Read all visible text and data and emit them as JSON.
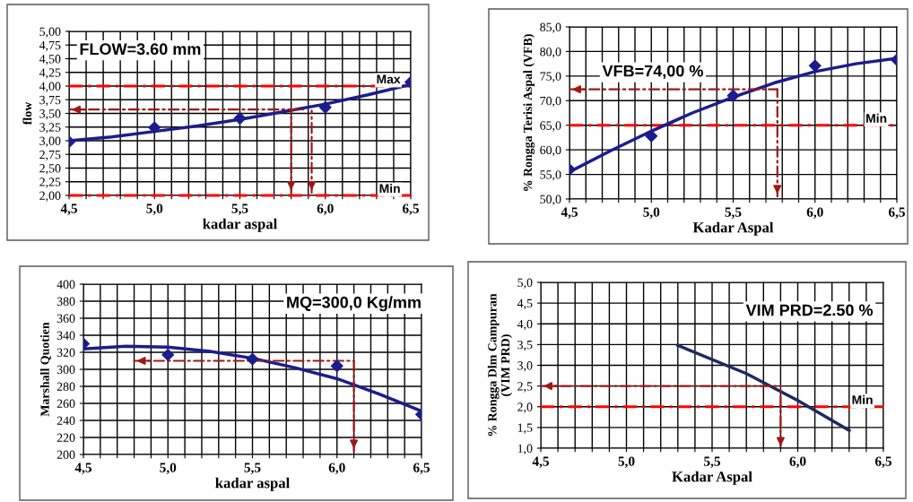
{
  "chart_data": [
    {
      "type": "scatter",
      "xlabel": "kadar aspal",
      "ylabel": "flow",
      "annotations": [
        "FLOW=3.60 mm"
      ],
      "xlim": [
        4.5,
        6.5
      ],
      "xticks": [
        {
          "value": 4.5,
          "label": "4,5"
        },
        {
          "value": 4.6,
          "label": null
        },
        {
          "value": 4.7,
          "label": null
        },
        {
          "value": 4.8,
          "label": null
        },
        {
          "value": 4.9,
          "label": null
        },
        {
          "value": 5.0,
          "label": "5,0"
        },
        {
          "value": 5.1,
          "label": null
        },
        {
          "value": 5.2,
          "label": null
        },
        {
          "value": 5.3,
          "label": null
        },
        {
          "value": 5.4,
          "label": null
        },
        {
          "value": 5.5,
          "label": "5,5"
        },
        {
          "value": 5.6,
          "label": null
        },
        {
          "value": 5.7,
          "label": null
        },
        {
          "value": 5.8,
          "label": null
        },
        {
          "value": 5.9,
          "label": null
        },
        {
          "value": 6.0,
          "label": "6,0"
        },
        {
          "value": 6.1,
          "label": null
        },
        {
          "value": 6.2,
          "label": null
        },
        {
          "value": 6.3,
          "label": null
        },
        {
          "value": 6.4,
          "label": null
        },
        {
          "value": 6.5,
          "label": "6,5"
        }
      ],
      "ylim": [
        2.0,
        5.0
      ],
      "yticks": [
        {
          "value": 2.0,
          "label": "2,00"
        },
        {
          "value": 2.25,
          "label": "2,25"
        },
        {
          "value": 2.5,
          "label": "2,50"
        },
        {
          "value": 2.75,
          "label": "2,75"
        },
        {
          "value": 3.0,
          "label": "3,00"
        },
        {
          "value": 3.25,
          "label": "3,25"
        },
        {
          "value": 3.5,
          "label": "3,50"
        },
        {
          "value": 3.75,
          "label": "3,75"
        },
        {
          "value": 4.0,
          "label": "4,00"
        },
        {
          "value": 4.25,
          "label": "4,25"
        },
        {
          "value": 4.5,
          "label": "4,50"
        },
        {
          "value": 4.75,
          "label": "4,75"
        },
        {
          "value": 5.0,
          "label": "5,00"
        }
      ],
      "grid": true,
      "legend": false,
      "marker": "diamond",
      "ref_lines": [
        {
          "axis": "y",
          "value": 4.0,
          "label": "Max",
          "color": "#ff0000",
          "line_style": "dashed"
        },
        {
          "axis": "y",
          "value": 2.0,
          "label": "Min",
          "color": "#ff0000",
          "line_style": "dashed"
        }
      ],
      "series": [
        {
          "color": "#1c1c8e",
          "x": [
            4.5,
            5.0,
            5.5,
            6.0,
            6.5
          ],
          "values": [
            2.98,
            3.24,
            3.41,
            3.61,
            4.07
          ]
        },
        {
          "type": "line",
          "color": "#1c1c8e",
          "marker": "none",
          "x": [
            4.5,
            4.75,
            5.0,
            5.25,
            5.5,
            5.75,
            6.0,
            6.25,
            6.5
          ],
          "values": [
            3.0,
            3.07,
            3.17,
            3.27,
            3.39,
            3.53,
            3.67,
            3.84,
            4.03
          ]
        },
        {
          "type": "line",
          "color": "#a01818",
          "marker": "none",
          "line_style": "dashed",
          "x": [
            5.87,
            4.5
          ],
          "values": [
            3.57,
            3.57
          ]
        },
        {
          "type": "line",
          "color": "#a01818",
          "marker": "none",
          "line_style": "dashed",
          "x": [
            5.8,
            5.8
          ],
          "values": [
            3.57,
            2.05
          ]
        },
        {
          "type": "line",
          "color": "#a01818",
          "marker": "none",
          "line_style": "dashed",
          "x": [
            5.92,
            5.92
          ],
          "values": [
            3.55,
            2.05
          ]
        }
      ]
    },
    {
      "type": "scatter",
      "xlabel": "Kadar Aspal",
      "ylabel": "% Rongga Terisi Aspal (VFB)",
      "annotations": [
        "VFB=74,00 %"
      ],
      "xlim": [
        4.5,
        6.5
      ],
      "xticks": [
        {
          "value": 4.5,
          "label": "4,5"
        },
        {
          "value": 4.6,
          "label": null
        },
        {
          "value": 4.7,
          "label": null
        },
        {
          "value": 4.8,
          "label": null
        },
        {
          "value": 4.9,
          "label": null
        },
        {
          "value": 5.0,
          "label": "5,0"
        },
        {
          "value": 5.1,
          "label": null
        },
        {
          "value": 5.2,
          "label": null
        },
        {
          "value": 5.3,
          "label": null
        },
        {
          "value": 5.4,
          "label": null
        },
        {
          "value": 5.5,
          "label": "5,5"
        },
        {
          "value": 5.6,
          "label": null
        },
        {
          "value": 5.7,
          "label": null
        },
        {
          "value": 5.8,
          "label": null
        },
        {
          "value": 5.9,
          "label": null
        },
        {
          "value": 6.0,
          "label": "6,0"
        },
        {
          "value": 6.1,
          "label": null
        },
        {
          "value": 6.2,
          "label": null
        },
        {
          "value": 6.3,
          "label": null
        },
        {
          "value": 6.4,
          "label": null
        },
        {
          "value": 6.5,
          "label": "6,5"
        }
      ],
      "ylim": [
        50,
        85
      ],
      "yticks": [
        {
          "value": 50,
          "label": "50,0"
        },
        {
          "value": 55,
          "label": "55,0"
        },
        {
          "value": 60,
          "label": "60,0"
        },
        {
          "value": 65,
          "label": "65,0"
        },
        {
          "value": 70,
          "label": "70,0"
        },
        {
          "value": 75,
          "label": "75,0"
        },
        {
          "value": 80,
          "label": "80,0"
        },
        {
          "value": 85,
          "label": "85,0"
        }
      ],
      "grid": true,
      "legend": false,
      "marker": "diamond",
      "ref_lines": [
        {
          "axis": "y",
          "value": 65,
          "label": "Min",
          "color": "#ff0000",
          "line_style": "dashed"
        }
      ],
      "series": [
        {
          "color": "#1c1c8e",
          "x": [
            4.5,
            5.0,
            5.5,
            6.0,
            6.5
          ],
          "values": [
            56.0,
            62.8,
            71.0,
            77.1,
            78.3
          ]
        },
        {
          "type": "line",
          "color": "#1c1c8e",
          "marker": "none",
          "x": [
            4.5,
            4.75,
            5.0,
            5.25,
            5.5,
            5.75,
            6.0,
            6.25,
            6.5
          ],
          "values": [
            55.5,
            59.8,
            63.8,
            67.5,
            70.7,
            73.6,
            75.9,
            77.5,
            78.6
          ]
        },
        {
          "type": "line",
          "color": "#a01818",
          "marker": "none",
          "line_style": "dashed",
          "x": [
            5.77,
            4.5
          ],
          "values": [
            72.3,
            72.3
          ]
        },
        {
          "type": "line",
          "color": "#a01818",
          "marker": "none",
          "line_style": "dashed",
          "x": [
            5.77,
            5.77
          ],
          "values": [
            72.3,
            50.5
          ]
        }
      ]
    },
    {
      "type": "scatter",
      "xlabel": "kadar aspal",
      "ylabel": "Marshall Quotien",
      "annotations": [
        "MQ=300,0 Kg/mm"
      ],
      "xlim": [
        4.5,
        6.5
      ],
      "xticks": [
        {
          "value": 4.5,
          "label": "4,5"
        },
        {
          "value": 4.6,
          "label": null
        },
        {
          "value": 4.7,
          "label": null
        },
        {
          "value": 4.8,
          "label": null
        },
        {
          "value": 4.9,
          "label": null
        },
        {
          "value": 5.0,
          "label": "5,0"
        },
        {
          "value": 5.1,
          "label": null
        },
        {
          "value": 5.2,
          "label": null
        },
        {
          "value": 5.3,
          "label": null
        },
        {
          "value": 5.4,
          "label": null
        },
        {
          "value": 5.5,
          "label": "5,5"
        },
        {
          "value": 5.6,
          "label": null
        },
        {
          "value": 5.7,
          "label": null
        },
        {
          "value": 5.8,
          "label": null
        },
        {
          "value": 5.9,
          "label": null
        },
        {
          "value": 6.0,
          "label": "6,0"
        },
        {
          "value": 6.1,
          "label": null
        },
        {
          "value": 6.2,
          "label": null
        },
        {
          "value": 6.3,
          "label": null
        },
        {
          "value": 6.4,
          "label": null
        },
        {
          "value": 6.5,
          "label": "6,5"
        }
      ],
      "ylim": [
        200,
        400
      ],
      "yticks": [
        200,
        220,
        240,
        260,
        280,
        300,
        320,
        340,
        360,
        380,
        400
      ],
      "grid": true,
      "legend": false,
      "marker": "diamond",
      "series": [
        {
          "color": "#1c1c8e",
          "x": [
            4.5,
            5.0,
            5.5,
            6.0,
            6.5
          ],
          "values": [
            330,
            317,
            312,
            304,
            247
          ]
        },
        {
          "type": "line",
          "color": "#1c1c8e",
          "marker": "none",
          "x": [
            4.5,
            4.75,
            5.0,
            5.25,
            5.5,
            5.75,
            6.0,
            6.25,
            6.5
          ],
          "values": [
            324,
            327,
            326,
            321,
            313,
            302,
            289,
            271,
            251
          ]
        },
        {
          "type": "line",
          "color": "#a01818",
          "marker": "none",
          "line_style": "dashed",
          "x": [
            6.1,
            4.8
          ],
          "values": [
            310,
            310
          ]
        },
        {
          "type": "line",
          "color": "#a01818",
          "marker": "none",
          "line_style": "dashed",
          "x": [
            6.1,
            6.1
          ],
          "values": [
            310,
            204
          ]
        }
      ]
    },
    {
      "type": "line",
      "xlabel": "Kadar Aspal",
      "ylabel": "% Rongga Dlm Campuran\n(VIM PRD)",
      "annotations": [
        "VIM PRD=2.50 %"
      ],
      "xlim": [
        4.5,
        6.5
      ],
      "xticks": [
        {
          "value": 4.5,
          "label": "4,5"
        },
        {
          "value": 4.6,
          "label": null
        },
        {
          "value": 4.7,
          "label": null
        },
        {
          "value": 4.8,
          "label": null
        },
        {
          "value": 4.9,
          "label": null
        },
        {
          "value": 5.0,
          "label": "5,0"
        },
        {
          "value": 5.1,
          "label": null
        },
        {
          "value": 5.2,
          "label": null
        },
        {
          "value": 5.3,
          "label": null
        },
        {
          "value": 5.4,
          "label": null
        },
        {
          "value": 5.5,
          "label": "5,5"
        },
        {
          "value": 5.6,
          "label": null
        },
        {
          "value": 5.7,
          "label": null
        },
        {
          "value": 5.8,
          "label": null
        },
        {
          "value": 5.9,
          "label": null
        },
        {
          "value": 6.0,
          "label": "6,0"
        },
        {
          "value": 6.1,
          "label": null
        },
        {
          "value": 6.2,
          "label": null
        },
        {
          "value": 6.3,
          "label": null
        },
        {
          "value": 6.4,
          "label": null
        },
        {
          "value": 6.5,
          "label": "6,5"
        }
      ],
      "ylim": [
        1.0,
        5.0
      ],
      "yticks": [
        {
          "value": 1.0,
          "label": "1,0"
        },
        {
          "value": 1.5,
          "label": "1,5"
        },
        {
          "value": 2.0,
          "label": "2,0"
        },
        {
          "value": 2.5,
          "label": "2,5"
        },
        {
          "value": 3.0,
          "label": "3,0"
        },
        {
          "value": 3.5,
          "label": "3,5"
        },
        {
          "value": 4.0,
          "label": "4,0"
        },
        {
          "value": 4.5,
          "label": "4,5"
        },
        {
          "value": 5.0,
          "label": "5,0"
        }
      ],
      "grid": true,
      "legend": false,
      "ref_lines": [
        {
          "axis": "y",
          "value": 2.0,
          "label": "Min",
          "color": "#ff0000",
          "line_style": "dashed"
        }
      ],
      "series": [
        {
          "color": "#1c2a5e",
          "marker": "none",
          "x": [
            5.3,
            5.7,
            6.0,
            6.3
          ],
          "values": [
            3.48,
            2.8,
            2.15,
            1.43
          ]
        },
        {
          "color": "#a01818",
          "marker": "none",
          "line_style": "dashed",
          "x": [
            5.9,
            4.5
          ],
          "values": [
            2.5,
            2.5
          ]
        },
        {
          "color": "#a01818",
          "marker": "none",
          "line_style": "dashed",
          "x": [
            5.9,
            5.9
          ],
          "values": [
            2.5,
            1.05
          ]
        }
      ]
    }
  ]
}
